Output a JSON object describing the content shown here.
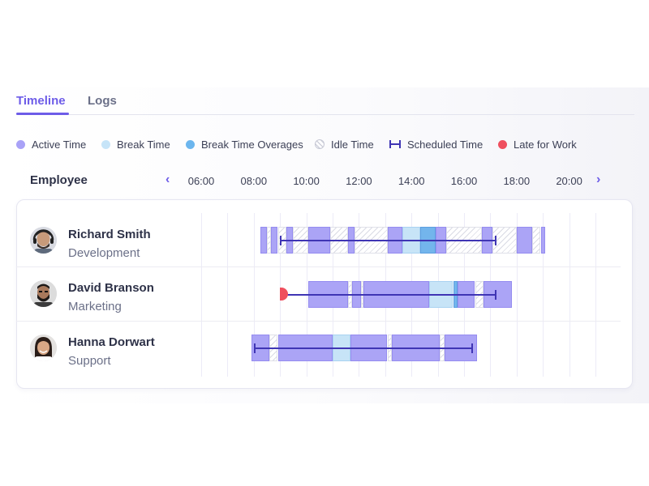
{
  "tabs": [
    {
      "label": "Timeline",
      "active": true
    },
    {
      "label": "Logs",
      "active": false
    }
  ],
  "legend": [
    {
      "key": "active",
      "label": "Active Time",
      "color": "#a9a2f7"
    },
    {
      "key": "break",
      "label": "Break Time",
      "color": "#c6e4f8"
    },
    {
      "key": "overage",
      "label": "Break Time Overages",
      "color": "#6cb6ee"
    },
    {
      "key": "idle",
      "label": "Idle Time"
    },
    {
      "key": "scheduled",
      "label": "Scheduled Time",
      "color": "#3f35b4"
    },
    {
      "key": "late",
      "label": "Late for Work",
      "color": "#ef4f5e"
    }
  ],
  "timeline": {
    "employee_header": "Employee",
    "prev_icon": "chevron-left-icon",
    "next_icon": "chevron-right-icon",
    "hours": [
      "06:00",
      "08:00",
      "10:00",
      "12:00",
      "14:00",
      "16:00",
      "18:00",
      "20:00"
    ]
  },
  "employees": [
    {
      "name": "Richard Smith",
      "department": "Development",
      "late": false,
      "scheduled": {
        "start": "09:00",
        "end": "17:15"
      },
      "segments": [
        {
          "type": "active",
          "start": "08:15",
          "end": "08:30"
        },
        {
          "type": "idle",
          "start": "08:30",
          "end": "08:40"
        },
        {
          "type": "active",
          "start": "08:40",
          "end": "08:55"
        },
        {
          "type": "idle",
          "start": "08:55",
          "end": "09:15"
        },
        {
          "type": "active",
          "start": "09:15",
          "end": "09:30"
        },
        {
          "type": "idle",
          "start": "09:30",
          "end": "10:05"
        },
        {
          "type": "active",
          "start": "10:05",
          "end": "10:55"
        },
        {
          "type": "idle",
          "start": "10:55",
          "end": "11:35"
        },
        {
          "type": "active",
          "start": "11:35",
          "end": "11:50"
        },
        {
          "type": "idle",
          "start": "11:50",
          "end": "13:05"
        },
        {
          "type": "active",
          "start": "13:05",
          "end": "13:40"
        },
        {
          "type": "break",
          "start": "13:40",
          "end": "14:20"
        },
        {
          "type": "overage",
          "start": "14:20",
          "end": "14:55"
        },
        {
          "type": "active",
          "start": "14:55",
          "end": "15:20"
        },
        {
          "type": "idle",
          "start": "15:20",
          "end": "16:40"
        },
        {
          "type": "active",
          "start": "16:40",
          "end": "17:05"
        },
        {
          "type": "idle",
          "start": "17:05",
          "end": "18:00"
        },
        {
          "type": "active",
          "start": "18:00",
          "end": "18:35"
        },
        {
          "type": "idle",
          "start": "18:35",
          "end": "18:55"
        },
        {
          "type": "active",
          "start": "18:55",
          "end": "19:05"
        }
      ]
    },
    {
      "name": "David Branson",
      "department": "Marketing",
      "late": true,
      "scheduled": {
        "start": "09:00",
        "end": "17:15"
      },
      "segments": [
        {
          "type": "active",
          "start": "10:05",
          "end": "11:35"
        },
        {
          "type": "idle",
          "start": "11:35",
          "end": "11:45"
        },
        {
          "type": "active",
          "start": "11:45",
          "end": "12:05"
        },
        {
          "type": "idle",
          "start": "12:05",
          "end": "12:10"
        },
        {
          "type": "active",
          "start": "12:10",
          "end": "14:40"
        },
        {
          "type": "break",
          "start": "14:40",
          "end": "15:35"
        },
        {
          "type": "overage",
          "start": "15:35",
          "end": "15:45"
        },
        {
          "type": "active",
          "start": "15:45",
          "end": "16:25"
        },
        {
          "type": "idle",
          "start": "16:25",
          "end": "16:45"
        },
        {
          "type": "active",
          "start": "16:45",
          "end": "17:50"
        }
      ]
    },
    {
      "name": "Hanna Dorwart",
      "department": "Support",
      "late": false,
      "scheduled": {
        "start": "08:00",
        "end": "16:20"
      },
      "segments": [
        {
          "type": "active",
          "start": "07:55",
          "end": "08:35"
        },
        {
          "type": "idle",
          "start": "08:35",
          "end": "08:55"
        },
        {
          "type": "active",
          "start": "08:55",
          "end": "11:00"
        },
        {
          "type": "break",
          "start": "11:00",
          "end": "11:40"
        },
        {
          "type": "active",
          "start": "11:40",
          "end": "13:05"
        },
        {
          "type": "idle",
          "start": "13:05",
          "end": "13:15"
        },
        {
          "type": "active",
          "start": "13:15",
          "end": "15:05"
        },
        {
          "type": "idle",
          "start": "15:05",
          "end": "15:15"
        },
        {
          "type": "active",
          "start": "15:15",
          "end": "16:30"
        }
      ]
    }
  ]
}
